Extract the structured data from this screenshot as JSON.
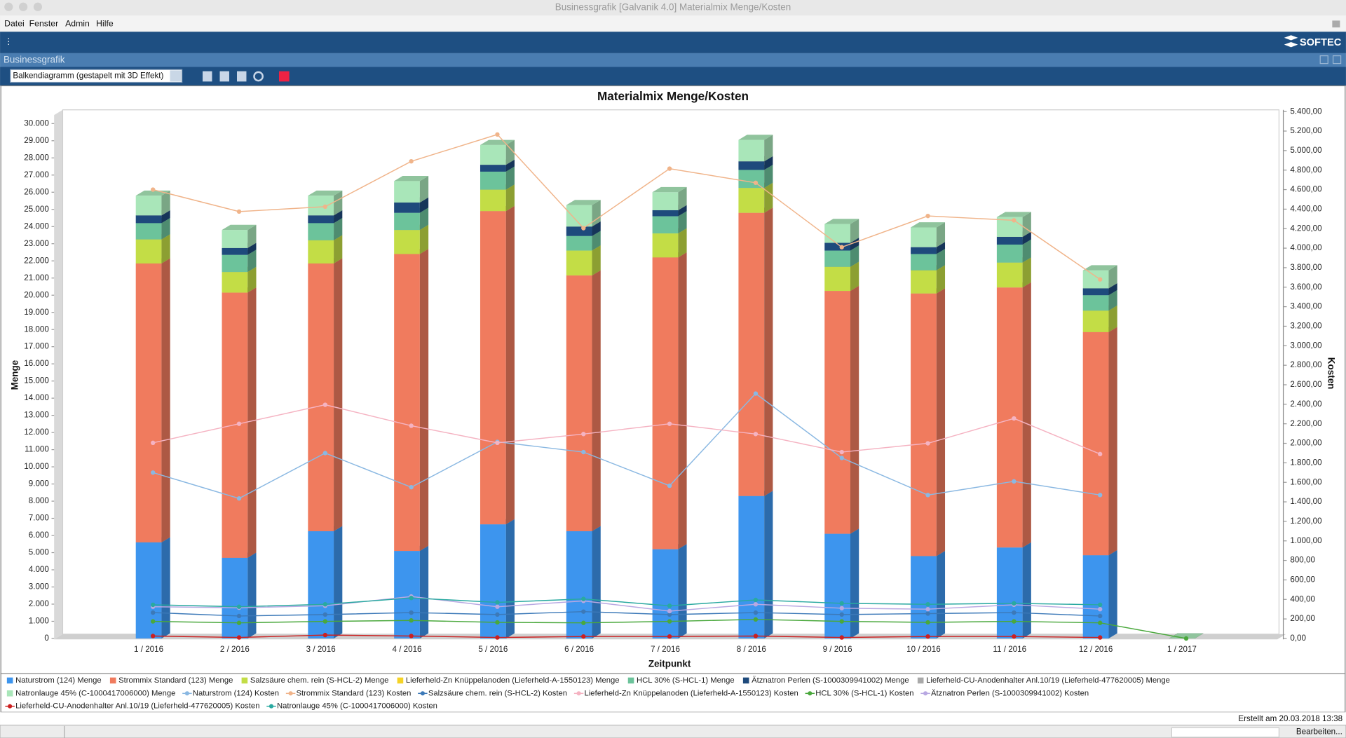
{
  "window": {
    "title": "Businessgrafik [Galvanik 4.0] Materialmix Menge/Kosten",
    "menu": [
      "Datei",
      "Fenster",
      "Admin",
      "Hilfe"
    ],
    "logo": "SOFTEC",
    "panel_title": "Businessgrafik",
    "chart_type_select": "Balkendiagramm (gestapelt mit 3D Effekt)",
    "created": "Erstellt am 20.03.2018 13:38",
    "status": "Bearbeiten..."
  },
  "chart_data": {
    "type": "bar",
    "stacked": true,
    "three_d": true,
    "grid": false,
    "title": "Materialmix Menge/Kosten",
    "xlabel": "Zeitpunkt",
    "ylabel": "Menge",
    "y2label": "Kosten",
    "categories": [
      "1 / 2016",
      "2 / 2016",
      "3 / 2016",
      "4 / 2016",
      "5 / 2016",
      "6 / 2016",
      "7 / 2016",
      "8 / 2016",
      "9 / 2016",
      "10 / 2016",
      "11 / 2016",
      "12 / 2016",
      "1 / 2017"
    ],
    "ylim": [
      0,
      30700
    ],
    "yticks": [
      0,
      {
        "value": 1000,
        "label": "1.000"
      },
      {
        "value": 2000,
        "label": "2.000"
      },
      {
        "value": 3000,
        "label": "3.000"
      },
      {
        "value": 4000,
        "label": "4.000"
      },
      {
        "value": 5000,
        "label": "5.000"
      },
      {
        "value": 6000,
        "label": "6.000"
      },
      {
        "value": 7000,
        "label": "7.000"
      },
      {
        "value": 8000,
        "label": "8.000"
      },
      {
        "value": 9000,
        "label": "9.000"
      },
      {
        "value": 10000,
        "label": "10.000"
      },
      {
        "value": 11000,
        "label": "11.000"
      },
      {
        "value": 12000,
        "label": "12.000"
      },
      {
        "value": 13000,
        "label": "13.000"
      },
      {
        "value": 14000,
        "label": "14.000"
      },
      {
        "value": 15000,
        "label": "15.000"
      },
      {
        "value": 16000,
        "label": "16.000"
      },
      {
        "value": 17000,
        "label": "17.000"
      },
      {
        "value": 18000,
        "label": "18.000"
      },
      {
        "value": 19000,
        "label": "19.000"
      },
      {
        "value": 20000,
        "label": "20.000"
      },
      {
        "value": 21000,
        "label": "21.000"
      },
      {
        "value": 22000,
        "label": "22.000"
      },
      {
        "value": 23000,
        "label": "23.000"
      },
      {
        "value": 24000,
        "label": "24.000"
      },
      {
        "value": 25000,
        "label": "25.000"
      },
      {
        "value": 26000,
        "label": "26.000"
      },
      {
        "value": 27000,
        "label": "27.000"
      },
      {
        "value": 28000,
        "label": "28.000"
      },
      {
        "value": 29000,
        "label": "29.000"
      },
      {
        "value": 30000,
        "label": "30.000"
      }
    ],
    "y2lim": [
      0,
      5400
    ],
    "y2ticks": [
      {
        "value": 0,
        "label": "0,00"
      },
      {
        "value": 200,
        "label": "200,00"
      },
      {
        "value": 400,
        "label": "400,00"
      },
      {
        "value": 600,
        "label": "600,00"
      },
      {
        "value": 800,
        "label": "800,00"
      },
      {
        "value": 1000,
        "label": "1.000,00"
      },
      {
        "value": 1200,
        "label": "1.200,00"
      },
      {
        "value": 1400,
        "label": "1.400,00"
      },
      {
        "value": 1600,
        "label": "1.600,00"
      },
      {
        "value": 1800,
        "label": "1.800,00"
      },
      {
        "value": 2000,
        "label": "2.000,00"
      },
      {
        "value": 2200,
        "label": "2.200,00"
      },
      {
        "value": 2400,
        "label": "2.400,00"
      },
      {
        "value": 2600,
        "label": "2.600,00"
      },
      {
        "value": 2800,
        "label": "2.800,00"
      },
      {
        "value": 3000,
        "label": "3.000,00"
      },
      {
        "value": 3200,
        "label": "3.200,00"
      },
      {
        "value": 3400,
        "label": "3.400,00"
      },
      {
        "value": 3600,
        "label": "3.600,00"
      },
      {
        "value": 3800,
        "label": "3.800,00"
      },
      {
        "value": 4000,
        "label": "4.000,00"
      },
      {
        "value": 4200,
        "label": "4.200,00"
      },
      {
        "value": 4400,
        "label": "4.400,00"
      },
      {
        "value": 4600,
        "label": "4.600,00"
      },
      {
        "value": 4800,
        "label": "4.800,00"
      },
      {
        "value": 5000,
        "label": "5.000,00"
      },
      {
        "value": 5200,
        "label": "5.200,00"
      },
      {
        "value": 5400,
        "label": "5.400,00"
      }
    ],
    "series": [
      {
        "name": "Naturstrom (124) Menge",
        "type": "bar",
        "color": "#3d95ee",
        "values": [
          5600,
          4700,
          6250,
          5100,
          6650,
          6250,
          5200,
          8300,
          6100,
          4800,
          5300,
          4850,
          0
        ]
      },
      {
        "name": "Strommix Standard (123) Menge",
        "type": "bar",
        "color": "#f07b5e",
        "values": [
          16250,
          15450,
          15600,
          17300,
          18250,
          14900,
          17000,
          16500,
          14150,
          15300,
          15150,
          13000,
          0
        ]
      },
      {
        "name": "Salzsäure chem. rein (S-HCL-2) Menge",
        "type": "bar",
        "color": "#c3dd46",
        "values": [
          1400,
          1200,
          1350,
          1400,
          1250,
          1450,
          1400,
          1450,
          1400,
          1350,
          1450,
          1250,
          0
        ]
      },
      {
        "name": "Lieferheld-Zn Knüppelanoden (Lieferheld-A-1550123) Menge",
        "type": "bar",
        "color": "#f5d327",
        "values": [
          0,
          0,
          0,
          0,
          0,
          0,
          0,
          0,
          0,
          0,
          0,
          0,
          0
        ]
      },
      {
        "name": "HCL 30% (S-HCL-1) Menge",
        "type": "bar",
        "color": "#6cc39b",
        "values": [
          950,
          1000,
          1000,
          1000,
          1050,
          850,
          1000,
          1050,
          950,
          950,
          1050,
          900,
          0
        ]
      },
      {
        "name": "Ätznatron Perlen (S-1000309941002) Menge",
        "type": "bar",
        "color": "#1e4a7c",
        "values": [
          450,
          400,
          450,
          600,
          400,
          550,
          350,
          500,
          450,
          400,
          450,
          400,
          0
        ]
      },
      {
        "name": "Lieferheld-CU-Anodenhalter Anl.10/19 (Lieferheld-477620005) Menge",
        "type": "bar",
        "color": "#a9a9a9",
        "values": [
          0,
          0,
          0,
          0,
          0,
          0,
          0,
          0,
          0,
          0,
          0,
          0,
          0
        ]
      },
      {
        "name": "Natronlauge 45% (C-1000417006000) Menge",
        "type": "bar",
        "color": "#a9e6b9",
        "values": [
          1150,
          1050,
          1150,
          1250,
          1150,
          1250,
          1050,
          1250,
          1100,
          1150,
          1150,
          1050,
          0
        ]
      },
      {
        "name": "Naturstrom (124) Kosten",
        "type": "line",
        "axis": "y2",
        "color": "#8ab8e2",
        "values": [
          1700,
          1435,
          1900,
          1550,
          2015,
          1910,
          1565,
          2510,
          1850,
          1470,
          1610,
          1470,
          null
        ]
      },
      {
        "name": "Strommix Standard (123) Kosten",
        "type": "line",
        "axis": "y2",
        "color": "#f0b48a",
        "values": [
          4600,
          4375,
          4425,
          4890,
          5165,
          4205,
          4815,
          4670,
          4010,
          4330,
          4285,
          3680,
          null
        ]
      },
      {
        "name": "Salzsäure chem. rein (S-HCL-2) Kosten",
        "type": "line",
        "axis": "y2",
        "color": "#3c79b8",
        "values": [
          265,
          230,
          245,
          265,
          245,
          275,
          245,
          265,
          245,
          255,
          265,
          230,
          null
        ]
      },
      {
        "name": "Lieferheld-Zn Knüppelanoden (Lieferheld-A-1550123) Kosten",
        "type": "line",
        "axis": "y2",
        "color": "#f5b3c2",
        "values": [
          2005,
          2200,
          2395,
          2180,
          2005,
          2095,
          2200,
          2095,
          1910,
          2000,
          2255,
          1890,
          null
        ]
      },
      {
        "name": "HCL 30% (S-HCL-1) Kosten",
        "type": "line",
        "axis": "y2",
        "color": "#4aa83c",
        "values": [
          175,
          160,
          175,
          185,
          165,
          160,
          175,
          195,
          175,
          165,
          175,
          160,
          0
        ]
      },
      {
        "name": "Ätznatron Perlen (S-1000309941002) Kosten",
        "type": "line",
        "axis": "y2",
        "color": "#b8a8e2",
        "values": [
          325,
          315,
          335,
          430,
          325,
          385,
          280,
          350,
          310,
          300,
          345,
          300,
          null
        ]
      },
      {
        "name": "Lieferheld-CU-Anodenhalter Anl.10/19 (Lieferheld-477620005) Kosten",
        "type": "line",
        "axis": "y2",
        "color": "#cc2020",
        "values": [
          25,
          10,
          35,
          25,
          10,
          20,
          20,
          25,
          10,
          20,
          20,
          10,
          null
        ]
      },
      {
        "name": "Natronlauge 45% (C-1000417006000) Kosten",
        "type": "line",
        "axis": "y2",
        "color": "#29a9a0",
        "values": [
          345,
          325,
          350,
          415,
          370,
          405,
          335,
          395,
          360,
          350,
          360,
          345,
          null
        ]
      }
    ]
  }
}
